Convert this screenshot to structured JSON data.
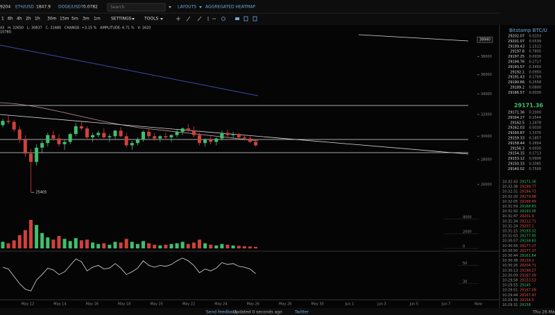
{
  "toolbar": {
    "tickers": [
      "9204",
      "ETH/USD",
      "1847.9",
      "DOGE/USDT",
      "0.0782"
    ],
    "search": "Search",
    "menus": [
      "LAYOUTS",
      "AGGREGATED HEATMAP"
    ],
    "timeframes": [
      "1",
      "6h",
      "4h",
      "2h",
      "1h",
      "30m",
      "15m",
      "5m",
      "3m",
      "1m"
    ],
    "tool_menus": [
      "SETTINGS",
      "TOOLS"
    ]
  },
  "info": {
    "line1": "43   H: 32650   L: 30837   C: 31680   CHANGE: +3.15 %   AMPLITUDE: 6.71 %   V: 1620",
    "line2": "10780."
  },
  "chart": {
    "type": "candlestick",
    "log_scale": true,
    "up_color": "#3fbf6f",
    "down_color": "#d0413a",
    "open": [
      31000,
      31400,
      31300,
      30600,
      29700,
      28500,
      27800,
      29000,
      29400,
      30100,
      29800,
      29300,
      29500,
      30200,
      30900,
      30700,
      29900,
      30100,
      30300,
      29900,
      30000,
      30500,
      30000,
      29200,
      29400,
      29700,
      30400,
      30000,
      29800,
      30000,
      29900,
      30100,
      30400,
      30700,
      30500,
      30100,
      29400,
      29700,
      29500,
      29800,
      30300,
      30100,
      30200,
      29900,
      29800,
      29500
    ],
    "high": [
      31600,
      31900,
      31500,
      30900,
      30100,
      28900,
      29300,
      29600,
      30300,
      30500,
      30200,
      29700,
      30300,
      31200,
      31400,
      30900,
      30300,
      30500,
      30700,
      30200,
      30600,
      30800,
      30300,
      29600,
      29900,
      30500,
      30700,
      30300,
      30100,
      30300,
      30200,
      30600,
      30800,
      31100,
      30900,
      30300,
      29800,
      30000,
      29900,
      30500,
      30600,
      30400,
      30300,
      30100,
      30000,
      29700
    ],
    "low": [
      30800,
      31100,
      30400,
      29400,
      28200,
      25405,
      27500,
      28600,
      29100,
      29600,
      29100,
      28800,
      29300,
      30000,
      30500,
      29700,
      29500,
      29900,
      29800,
      29500,
      29700,
      29900,
      29000,
      28800,
      29200,
      29500,
      29800,
      29600,
      29500,
      29700,
      29500,
      29900,
      30100,
      30400,
      29900,
      29200,
      29100,
      29300,
      29200,
      29600,
      29900,
      29800,
      29700,
      29600,
      29400,
      29100
    ],
    "close": [
      31400,
      31300,
      30600,
      29700,
      28500,
      27800,
      29000,
      29400,
      30100,
      29800,
      29300,
      29500,
      30200,
      30900,
      30700,
      29900,
      30100,
      30300,
      29900,
      30000,
      30500,
      30000,
      29200,
      29400,
      29700,
      30400,
      30000,
      29800,
      30000,
      29900,
      30100,
      30400,
      30700,
      30500,
      30100,
      29400,
      29700,
      29500,
      29800,
      30300,
      30100,
      30200,
      29900,
      29800,
      29500,
      29200
    ],
    "volume": [
      900,
      700,
      1100,
      1800,
      2500,
      3900,
      3200,
      2100,
      1500,
      1200,
      1700,
      1300,
      1000,
      1400,
      1100,
      1200,
      800,
      600,
      700,
      500,
      900,
      800,
      1300,
      900,
      600,
      1000,
      700,
      500,
      400,
      500,
      600,
      700,
      900,
      600,
      800,
      1200,
      700,
      500,
      400,
      600,
      500,
      400,
      350,
      300,
      250,
      200
    ],
    "rsi": [
      48,
      46,
      38,
      30,
      24,
      22,
      34,
      40,
      47,
      45,
      40,
      43,
      50,
      57,
      54,
      44,
      48,
      50,
      46,
      47,
      52,
      47,
      40,
      43,
      47,
      55,
      50,
      48,
      50,
      49,
      51,
      55,
      58,
      55,
      50,
      42,
      46,
      44,
      47,
      53,
      51,
      52,
      49,
      48,
      46,
      41
    ],
    "ylim": [
      25000,
      40700
    ],
    "yticks": [
      26000,
      28000,
      30000,
      32000,
      34000,
      36000,
      38000
    ],
    "price_box": 39940,
    "low_label": 25405,
    "volume_lim": [
      0,
      5500
    ],
    "volume_ticks": [
      0,
      2000,
      4000
    ],
    "rsi_lim": [
      14,
      64
    ],
    "rsi_ticks": [
      30,
      50
    ],
    "xticks": [
      "May 12",
      "May 14",
      "May 16",
      "May 18",
      "May 20",
      "May 22",
      "May 24",
      "May 26",
      "May 28",
      "May 30",
      "Jun 1",
      "Jun 3",
      "Jun 5",
      "Jun 7",
      "Now"
    ]
  },
  "orderbook": {
    "title": "Bitstamp BTC/U",
    "asks": [
      [
        "29202.07",
        "0.0203"
      ],
      [
        "29201.07",
        "0.0539"
      ],
      [
        "29199.43",
        "1.1513"
      ],
      [
        "29197.8",
        "0.7805"
      ],
      [
        "29197.25",
        "0.0030"
      ],
      [
        "29194.76",
        "0.2717"
      ],
      [
        "29193.57",
        "0.3450"
      ],
      [
        "29192.1",
        "0.0950"
      ],
      [
        "29191.43",
        "0.1709"
      ],
      [
        "29190.66",
        "0.2558"
      ],
      [
        "29189.2",
        "0.0800"
      ],
      [
        "29186.57",
        "0.0030"
      ]
    ],
    "mid": "29171.36",
    "bids": [
      [
        "29171.36",
        "0.2000"
      ],
      [
        "29164.27",
        "0.2544"
      ],
      [
        "29162.5",
        "1.2478"
      ],
      [
        "29162.03",
        "0.0030"
      ],
      [
        "29160.87",
        "1.3376"
      ],
      [
        "29159.33",
        "0.1857"
      ],
      [
        "29158.44",
        "0.2654"
      ],
      [
        "29156.3",
        "0.0030"
      ],
      [
        "29154.15",
        "0.1713"
      ],
      [
        "29153.12",
        "0.0900"
      ],
      [
        "29150.33",
        "0.2085"
      ],
      [
        "29140.02",
        "0.7500"
      ]
    ]
  },
  "trades": [
    [
      "10:32:43",
      "29171.36",
      "buy"
    ],
    [
      "10:32:38",
      "29199.77",
      "sell"
    ],
    [
      "10:32:31",
      "29184.73",
      "sell"
    ],
    [
      "10:32:20",
      "29179.98",
      "sell"
    ],
    [
      "10:32:05",
      "29168.49",
      "sell"
    ],
    [
      "10:31:59",
      "29168.83",
      "buy"
    ],
    [
      "10:31:50",
      "29193.35",
      "buy"
    ],
    [
      "10:31:47",
      "29201.9",
      "sell"
    ],
    [
      "10:31:34",
      "29212.71",
      "sell"
    ],
    [
      "10:31:24",
      "29207.1",
      "sell"
    ],
    [
      "10:31:15",
      "29193.32",
      "buy"
    ],
    [
      "10:31:03",
      "29177.95",
      "buy"
    ],
    [
      "10:30:57",
      "29158.83",
      "buy"
    ],
    [
      "10:30:55",
      "29177.27",
      "sell"
    ],
    [
      "10:30:50",
      "29177.27",
      "sell"
    ],
    [
      "10:30:44",
      "29161.64",
      "buy"
    ],
    [
      "10:30:38",
      "29139.1",
      "sell"
    ],
    [
      "10:30:25",
      "29204.71",
      "sell"
    ],
    [
      "10:30:13",
      "29198.27",
      "sell"
    ],
    [
      "10:30:09",
      "29167.09",
      "sell"
    ],
    [
      "10:29:58",
      "29153.53",
      "sell"
    ],
    [
      "10:29:55",
      "29145",
      "buy"
    ],
    [
      "10:29:51",
      "29167.09",
      "sell"
    ],
    [
      "10:29:44",
      "29167.47",
      "sell"
    ],
    [
      "10:29:39",
      "29154.5",
      "sell"
    ],
    [
      "10:29:31",
      "29158",
      "buy"
    ]
  ],
  "footer": {
    "feedback": "Send feedback",
    "status": "Updated 0 seconds ago",
    "twitter": "Twitter",
    "clock": "Thu 26 Ma"
  }
}
